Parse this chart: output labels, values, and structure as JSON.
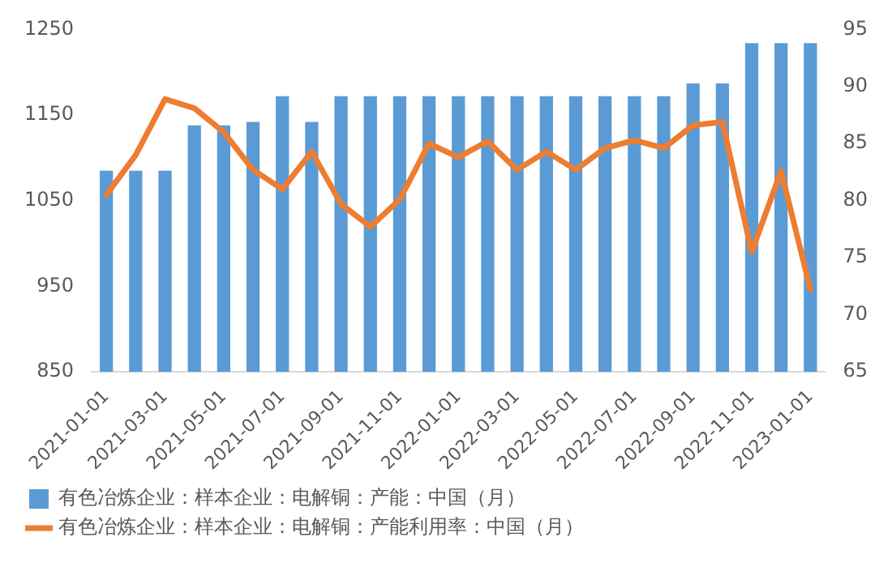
{
  "chart_data": {
    "type": "bar",
    "categories": [
      "2021-01-01",
      null,
      "2021-03-01",
      null,
      "2021-05-01",
      null,
      "2021-07-01",
      null,
      "2021-09-01",
      null,
      "2021-11-01",
      null,
      "2022-01-01",
      null,
      "2022-03-01",
      null,
      "2022-05-01",
      null,
      "2022-07-01",
      null,
      "2022-09-01",
      null,
      "2022-11-01",
      null,
      "2023-01-01"
    ],
    "series": [
      {
        "name": "有色冶炼企业：样本企业：电解铜：产能：中国（月）",
        "color": "#5b9bd5",
        "values": [
          1085,
          1085,
          1085,
          1138,
          1138,
          1142,
          1172,
          1142,
          1172,
          1172,
          1172,
          1172,
          1172,
          1172,
          1172,
          1172,
          1172,
          1172,
          1172,
          1172,
          1187,
          1187,
          1234,
          1234,
          1234
        ]
      },
      {
        "name": "有色冶炼企业：样本企业：电解铜：产能利用率：中国（月）",
        "type": "line",
        "axis": "y2",
        "color": "#ed7d31",
        "values": [
          80.5,
          84,
          88.9,
          88.1,
          86,
          82.7,
          81,
          84.3,
          79.7,
          77.7,
          80.1,
          85,
          83.8,
          85.2,
          82.7,
          84.3,
          82.7,
          84.6,
          85.3,
          84.6,
          86.6,
          86.9,
          75.5,
          82.6,
          72.2
        ]
      }
    ],
    "ylim": [
      850,
      1250
    ],
    "yticks": [
      850,
      950,
      1050,
      1150,
      1250
    ],
    "y2lim": [
      65,
      95
    ],
    "y2ticks": [
      65,
      70,
      75,
      80,
      85,
      90,
      95
    ],
    "legend": "bottom",
    "grid": false,
    "line_style": "solid",
    "marker": "none"
  }
}
